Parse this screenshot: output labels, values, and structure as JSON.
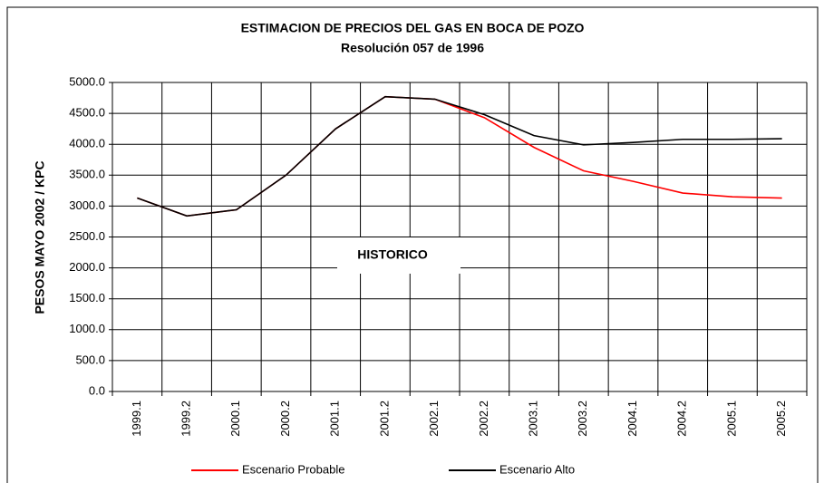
{
  "chart_data": {
    "type": "line",
    "title": "ESTIMACION DE PRECIOS DEL GAS EN BOCA DE POZO",
    "subtitle": "Resolución 057 de 1996",
    "y_label": "PESOS MAYO 2002 / KPC",
    "annotation": "HISTORICO",
    "categories": [
      "1999.1",
      "1999.2",
      "2000.1",
      "2000.2",
      "2001.1",
      "2001.2",
      "2002.1",
      "2002.2",
      "2003.1",
      "2003.2",
      "2004.1",
      "2004.2",
      "2005.1",
      "2005.2"
    ],
    "series": [
      {
        "name": "Escenario Probable",
        "color": "#ff0000",
        "values": [
          3130,
          2840,
          2940,
          3500,
          4250,
          4770,
          4730,
          4430,
          3950,
          3570,
          3400,
          3210,
          3150,
          3130
        ]
      },
      {
        "name": "Escenario Alto",
        "color": "#000000",
        "values": [
          3130,
          2840,
          2940,
          3500,
          4250,
          4770,
          4730,
          4480,
          4140,
          3990,
          4030,
          4080,
          4080,
          4090
        ]
      }
    ],
    "ylim": [
      0,
      5000
    ],
    "yticks": [
      {
        "value": 0,
        "label": "0.0"
      },
      {
        "value": 500,
        "label": "500.0"
      },
      {
        "value": 1000,
        "label": "1000.0"
      },
      {
        "value": 1500,
        "label": "1500.0"
      },
      {
        "value": 2000,
        "label": "2000.0"
      },
      {
        "value": 2500,
        "label": "2500.0"
      },
      {
        "value": 3000,
        "label": "3000.0"
      },
      {
        "value": 3500,
        "label": "3500.0"
      },
      {
        "value": 4000,
        "label": "4000.0"
      },
      {
        "value": 4500,
        "label": "4500.0"
      },
      {
        "value": 5000,
        "label": "5000.0"
      }
    ],
    "grid": true
  }
}
